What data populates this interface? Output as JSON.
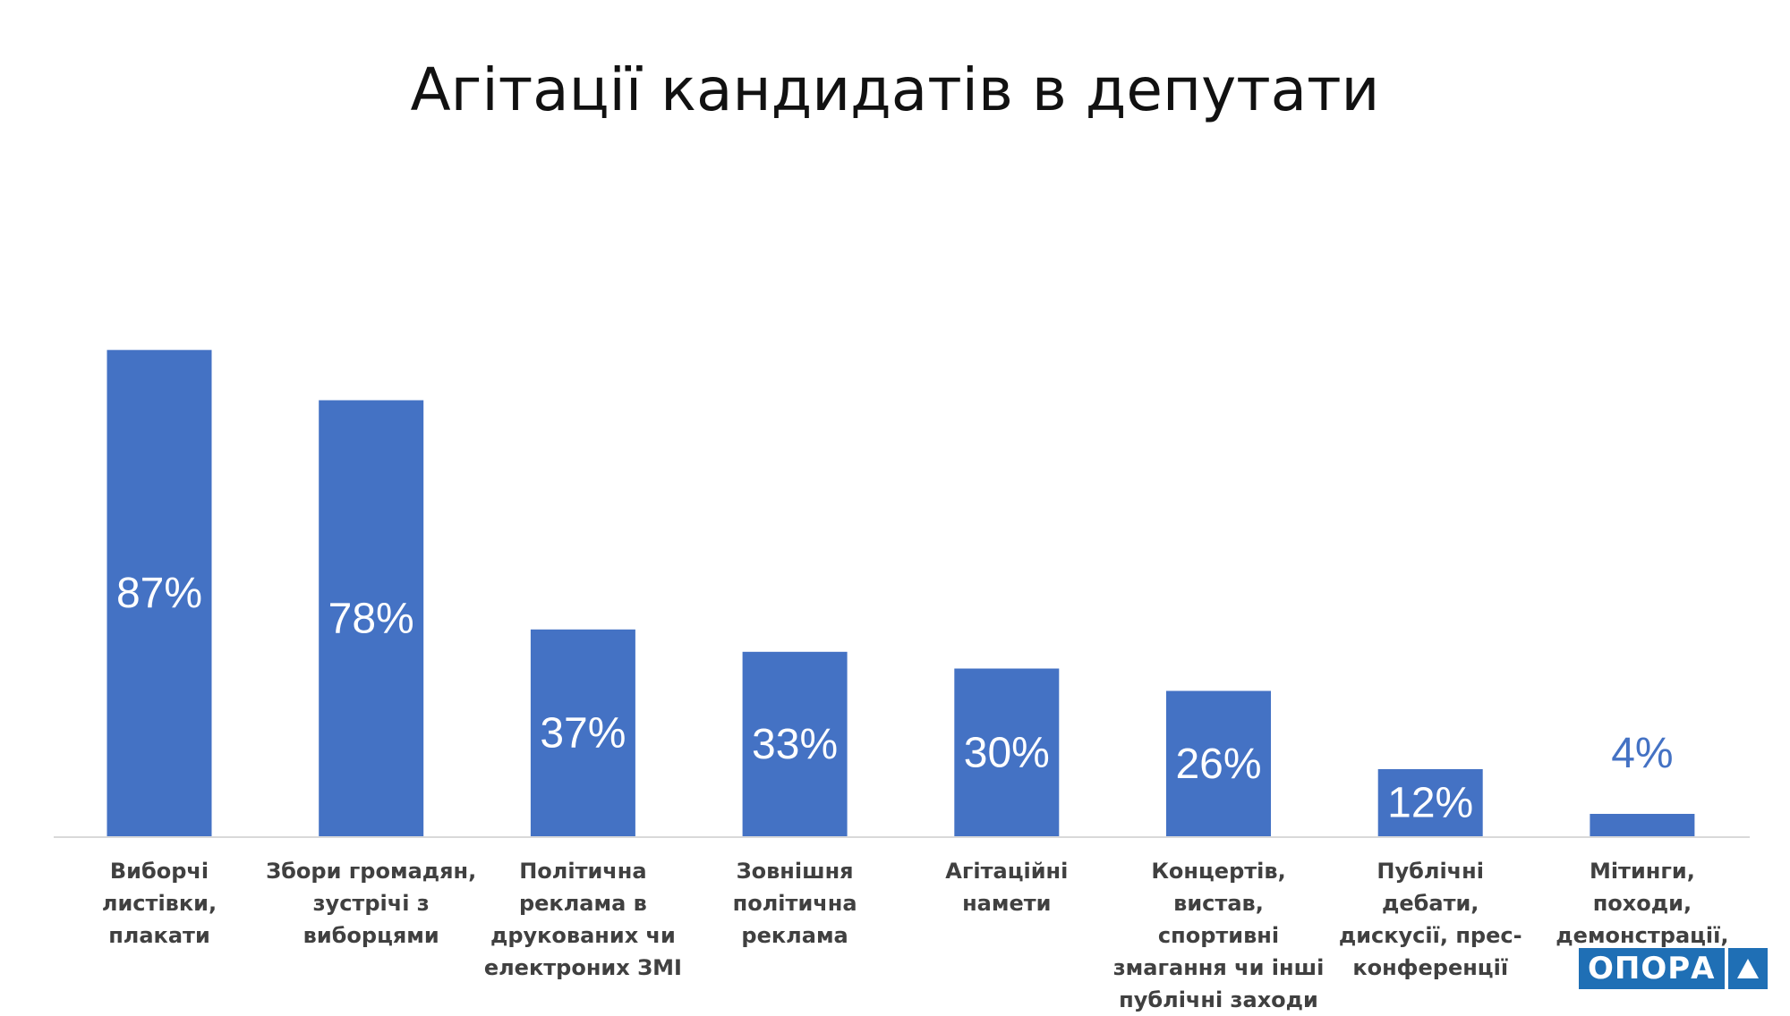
{
  "chart_data": {
    "type": "bar",
    "title": "Агітації кандидатів в депутати",
    "xlabel": "",
    "ylabel": "",
    "ylim": [
      0,
      100
    ],
    "grid": false,
    "legend": "none",
    "bar_color": "#4472c4",
    "label_inside_color": "#ffffff",
    "label_outside_color": "#4472c4",
    "axis_color": "#d9d9d9",
    "categories": [
      "Виборчі листівки, плакати",
      "Збори громадян, зустрічі з виборцями",
      "Політична реклама в друкованих чи електроних ЗМІ",
      "Зовнішня політична реклама",
      "Агітаційні намети",
      "Концертів, вистав, спортивні змагання чи інші публічні заходи",
      "Публічні дебати, дискусії, прес-конференції",
      "Мітинги, походи, демонстрації, пікети;"
    ],
    "values": [
      87,
      78,
      37,
      33,
      30,
      26,
      12,
      4
    ],
    "data_labels": [
      "87%",
      "78%",
      "37%",
      "33%",
      "30%",
      "26%",
      "12%",
      "4%"
    ]
  },
  "logo": {
    "text": "ОПОРА",
    "color": "#1f6fb5"
  }
}
